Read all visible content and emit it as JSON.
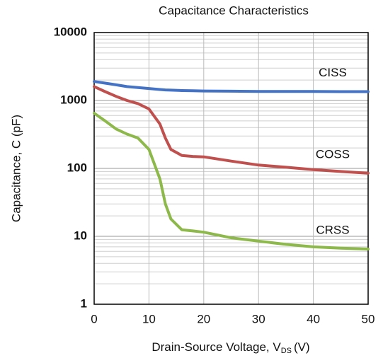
{
  "chart_data": {
    "type": "line",
    "title": "Capacitance Characteristics",
    "xlabel": "Drain-Source Voltage, V",
    "xlabel_sub": "DS",
    "xlabel_end": "(V)",
    "ylabel": "Capacitance, C (pF)",
    "x": [
      0,
      2,
      4,
      6,
      8,
      10,
      12,
      13,
      14,
      16,
      18,
      20,
      25,
      30,
      35,
      40,
      45,
      50
    ],
    "series": [
      {
        "name": "CISS",
        "color": "#4472c4",
        "values": [
          1900,
          1800,
          1700,
          1600,
          1550,
          1500,
          1450,
          1430,
          1420,
          1400,
          1390,
          1380,
          1370,
          1360,
          1360,
          1355,
          1350,
          1350
        ]
      },
      {
        "name": "COSS",
        "color": "#c0504d",
        "values": [
          1600,
          1350,
          1150,
          1000,
          900,
          750,
          450,
          280,
          190,
          155,
          150,
          148,
          128,
          112,
          104,
          96,
          90,
          85
        ]
      },
      {
        "name": "CRSS",
        "color": "#8db84a",
        "values": [
          650,
          500,
          380,
          320,
          280,
          190,
          70,
          30,
          18,
          12.5,
          12,
          11.5,
          9.5,
          8.5,
          7.6,
          7,
          6.7,
          6.5
        ]
      }
    ],
    "xlim": [
      0,
      50
    ],
    "xticks": [
      0,
      10,
      20,
      30,
      40,
      50
    ],
    "ylim": [
      1,
      10000
    ],
    "yticks": [
      1,
      10,
      100,
      1000,
      10000
    ],
    "yminorticks": [
      2,
      3,
      4,
      5,
      6,
      7,
      8,
      9,
      20,
      30,
      40,
      50,
      60,
      70,
      80,
      90,
      200,
      300,
      400,
      500,
      600,
      700,
      800,
      900,
      2000,
      3000,
      4000,
      5000,
      6000,
      7000,
      8000,
      9000
    ],
    "ylog": true,
    "grid": true
  }
}
